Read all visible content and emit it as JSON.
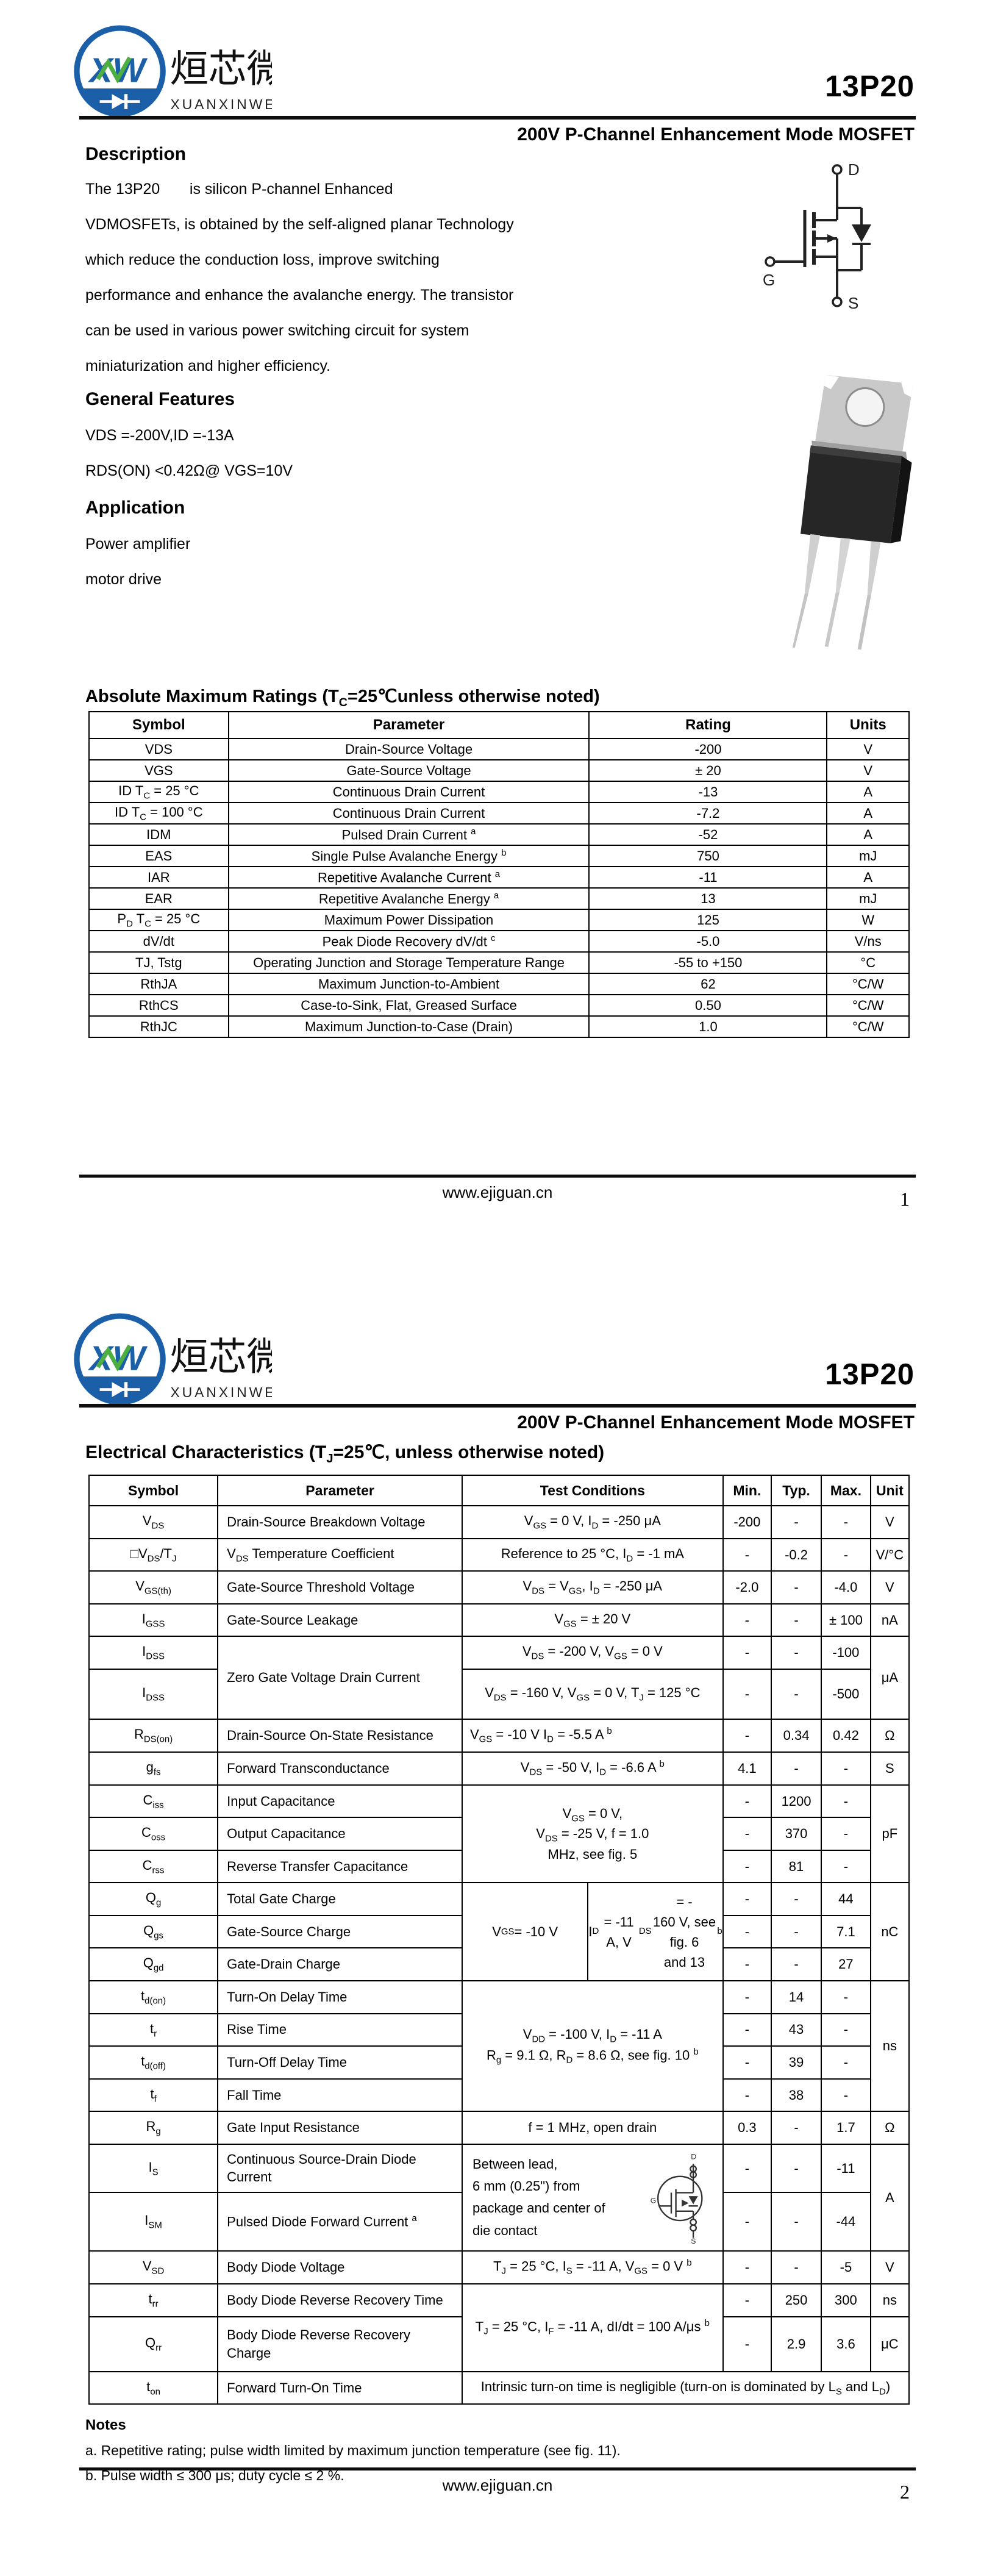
{
  "brand": {
    "cn": "烜芯微",
    "en": "XUANXINWEI",
    "monogram": "XW"
  },
  "header": {
    "part": "13P20",
    "subtitle": "200V P-Channel Enhancement Mode MOSFET"
  },
  "footer": {
    "url": "www.ejiguan.cn",
    "page1": "1",
    "page2": "2"
  },
  "page1": {
    "description": {
      "heading": "Description",
      "lines": [
        "The 13P20       is silicon P-channel Enhanced",
        "VDMOSFETs, is obtained by the self-aligned planar Technology",
        "which reduce the conduction loss, improve switching",
        "performance and enhance the avalanche energy. The transistor",
        "can be used in various power switching circuit for system",
        "miniaturization and higher efficiency."
      ]
    },
    "features": {
      "heading": "General Features",
      "lines": [
        "VDS =-200V,ID =-13A",
        "RDS(ON) <0.42Ω@ VGS=10V"
      ]
    },
    "application": {
      "heading": "Application",
      "lines": [
        "Power amplifier",
        "motor drive"
      ]
    },
    "symbol_labels": {
      "d": "D",
      "g": "G",
      "s": "S"
    },
    "abs_max": {
      "heading_html": "Absolute Maximum Ratings (T<sub>C</sub>=25℃unless otherwise noted)",
      "headers": [
        "Symbol",
        "Parameter",
        "Rating",
        "Units"
      ],
      "rows": [
        {
          "sym_html": "VDS",
          "par_html": "Drain-Source Voltage",
          "rating": "-200",
          "units": "V"
        },
        {
          "sym_html": "VGS",
          "par_html": "Gate-Source Voltage",
          "rating": "± 20",
          "units": "V"
        },
        {
          "sym_html": "ID T<sub>C</sub> = 25 °C",
          "par_html": "Continuous Drain Current",
          "rating": "-13",
          "units": "A"
        },
        {
          "sym_html": "ID T<sub>C</sub> = 100 °C",
          "par_html": "Continuous Drain Current",
          "rating": "-7.2",
          "units": "A"
        },
        {
          "sym_html": "IDM",
          "par_html": "Pulsed Drain Current <sup>a</sup>",
          "rating": "-52",
          "units": "A"
        },
        {
          "sym_html": "EAS",
          "par_html": "Single Pulse Avalanche Energy <sup>b</sup>",
          "rating": "750",
          "units": "mJ"
        },
        {
          "sym_html": "IAR",
          "par_html": "Repetitive Avalanche Current <sup>a</sup>",
          "rating": "-11",
          "units": "A"
        },
        {
          "sym_html": "EAR",
          "par_html": "Repetitive Avalanche Energy <sup>a</sup>",
          "rating": "13",
          "units": "mJ"
        },
        {
          "sym_html": "P<sub>D</sub> T<sub>C</sub> = 25 °C",
          "par_html": "Maximum Power Dissipation",
          "rating": "125",
          "units": "W"
        },
        {
          "sym_html": "dV/dt",
          "par_html": "Peak Diode Recovery dV/dt <sup>c</sup>",
          "rating": "-5.0",
          "units": "V/ns"
        },
        {
          "sym_html": "TJ, Tstg",
          "par_html": "Operating Junction and Storage Temperature Range",
          "rating": "-55 to +150",
          "units": "°C"
        },
        {
          "sym_html": "RthJA",
          "par_html": "Maximum Junction-to-Ambient",
          "rating": "62",
          "units": "°C/W"
        },
        {
          "sym_html": "RthCS",
          "par_html": "Case-to-Sink, Flat, Greased Surface",
          "rating": "0.50",
          "units": "°C/W"
        },
        {
          "sym_html": "RthJC",
          "par_html": "Maximum Junction-to-Case (Drain)",
          "rating": "1.0",
          "units": "°C/W"
        }
      ]
    }
  },
  "page2": {
    "heading_html": "Electrical Characteristics (T<sub>J</sub>=25℃, unless otherwise noted)",
    "table": {
      "headers": [
        "Symbol",
        "Parameter",
        "Test Conditions",
        "Min.",
        "Typ.",
        "Max.",
        "Unit"
      ],
      "rows": [
        {
          "sym": "V<sub>DS</sub>",
          "par": "Drain-Source Breakdown Voltage",
          "cond": "V<sub>GS</sub> = 0 V, I<sub>D</sub> = -250 μA",
          "min": "-200",
          "typ": "-",
          "max": "-",
          "unit": "V"
        },
        {
          "sym": "□V<sub>DS</sub>/T<sub>J</sub>",
          "par": "V<sub>DS</sub> Temperature Coefficient",
          "cond": "Reference to 25 °C, I<sub>D</sub> = -1 mA",
          "min": "-",
          "typ": "-0.2",
          "max": "-",
          "unit": "V/°C"
        },
        {
          "sym": "V<sub>GS(th)</sub>",
          "par": "Gate-Source Threshold Voltage",
          "cond": "V<sub>DS</sub> = V<sub>GS</sub>, I<sub>D</sub> = -250 μA",
          "min": "-2.0",
          "typ": "-",
          "max": "-4.0",
          "unit": "V"
        },
        {
          "sym": "I<sub>GSS</sub>",
          "par": "Gate-Source Leakage",
          "cond": "V<sub>GS</sub> = ± 20 V",
          "min": "-",
          "typ": "-",
          "max": "± 100",
          "unit": "nA"
        },
        {
          "sym": "I<sub>DSS</sub>",
          "par": "Zero Gate Voltage Drain Current",
          "cond": "V<sub>DS</sub> = -200 V, V<sub>GS</sub> = 0 V",
          "min": "-",
          "typ": "-",
          "max": "-100",
          "unit": "μA"
        },
        {
          "sym": "I<sub>DSS</sub>",
          "cond": "V<sub>DS</sub> = -160 V, V<sub>GS</sub> = 0 V, T<sub>J</sub> = 125 °C",
          "min": "-",
          "typ": "-",
          "max": "-500"
        },
        {
          "sym": "R<sub>DS(on)</sub>",
          "par": "Drain-Source On-State Resistance",
          "cond": "V<sub>GS</sub> = -10 V I<sub>D</sub> = -5.5 A <sup>b</sup>",
          "min": "-",
          "typ": "0.34",
          "max": "0.42",
          "unit": "Ω"
        },
        {
          "sym": "g<sub>fs</sub>",
          "par": "Forward Transconductance",
          "cond": "V<sub>DS</sub> = -50 V, I<sub>D</sub> = -6.6 A <sup>b</sup>",
          "min": "4.1",
          "typ": "-",
          "max": "-",
          "unit": "S"
        },
        {
          "sym": "C<sub>iss</sub>",
          "par": "Input Capacitance",
          "cond": "V<sub>GS</sub> = 0 V,<br>V<sub>DS</sub> = -25 V, f = 1.0<br>MHz, see fig. 5",
          "min": "-",
          "typ": "1200",
          "max": "-",
          "unit": "pF"
        },
        {
          "sym": "C<sub>oss</sub>",
          "par": "Output Capacitance",
          "min": "-",
          "typ": "370",
          "max": "-"
        },
        {
          "sym": "C<sub>rss</sub>",
          "par": "Reverse Transfer Capacitance",
          "min": "-",
          "typ": "81",
          "max": "-"
        },
        {
          "sym": "Q<sub>g</sub>",
          "par": "Total Gate Charge",
          "cond_left": "V<sub>GS</sub> = -10 V",
          "cond_right": "I<sub>D</sub> = -11 A, V<sub>DS</sub> = -<br>160 V, see fig. 6<br>and 13 <sup>b</sup>",
          "min": "-",
          "typ": "-",
          "max": "44",
          "unit": "nC"
        },
        {
          "sym": "Q<sub>gs</sub>",
          "par": "Gate-Source Charge",
          "min": "-",
          "typ": "-",
          "max": "7.1"
        },
        {
          "sym": "Q<sub>gd</sub>",
          "par": "Gate-Drain Charge",
          "min": "-",
          "typ": "-",
          "max": "27"
        },
        {
          "sym": "t<sub>d(on)</sub>",
          "par": "Turn-On Delay Time",
          "cond": "V<sub>DD</sub> = -100 V, I<sub>D</sub> = -11 A<br>R<sub>g</sub> = 9.1 Ω, R<sub>D</sub> = 8.6 Ω, see fig. 10 <sup>b</sup>",
          "min": "-",
          "typ": "14",
          "max": "-",
          "unit": "ns"
        },
        {
          "sym": "t<sub>r</sub>",
          "par": "Rise Time",
          "min": "-",
          "typ": "43",
          "max": "-"
        },
        {
          "sym": "t<sub>d(off)</sub>",
          "par": "Turn-Off Delay Time",
          "min": "-",
          "typ": "39",
          "max": "-"
        },
        {
          "sym": "t<sub>f</sub>",
          "par": "Fall Time",
          "min": "-",
          "typ": "38",
          "max": "-"
        },
        {
          "sym": "R<sub>g</sub>",
          "par": "Gate Input Resistance",
          "cond": "f = 1 MHz, open drain",
          "min": "0.3",
          "typ": "-",
          "max": "1.7",
          "unit": "Ω"
        },
        {
          "sym": "I<sub>S</sub>",
          "par": "Continuous Source-Drain Diode Current",
          "cond": "Between lead,<br>6 mm (0.25\") from<br>package and center of<br>die contact",
          "min": "-",
          "typ": "-",
          "max": "-11",
          "unit": "A"
        },
        {
          "sym": "I<sub>SM</sub>",
          "par": "Pulsed Diode Forward Current <sup>a</sup>",
          "min": "-",
          "typ": "-",
          "max": "-44"
        },
        {
          "sym": "V<sub>SD</sub>",
          "par": "Body Diode Voltage",
          "cond": "T<sub>J</sub> = 25 °C, I<sub>S</sub> = -11 A, V<sub>GS</sub> = 0 V <sup>b</sup>",
          "min": "-",
          "typ": "-",
          "max": "-5",
          "unit": "V"
        },
        {
          "sym": "t<sub>rr</sub>",
          "par": "Body Diode Reverse Recovery Time",
          "cond": "T<sub>J</sub> = 25 °C, I<sub>F</sub> = -11 A, dI/dt = 100 A/μs <sup>b</sup>",
          "min": "-",
          "typ": "250",
          "max": "300",
          "unit": "ns"
        },
        {
          "sym": "Q<sub>rr</sub>",
          "par": "Body Diode Reverse Recovery Charge",
          "min": "-",
          "typ": "2.9",
          "max": "3.6",
          "unit": "μC"
        },
        {
          "sym": "t<sub>on</sub>",
          "par": "Forward Turn-On Time",
          "cond": "Intrinsic turn-on time is negligible (turn-on is dominated by L<sub>S</sub> and L<sub>D</sub>)"
        }
      ]
    },
    "notes": {
      "heading": "Notes",
      "a": "a.  Repetitive rating; pulse width limited by maximum junction temperature (see fig. 11).",
      "b": "b.  Pulse width ≤ 300 μs; duty cycle ≤ 2 %."
    }
  }
}
